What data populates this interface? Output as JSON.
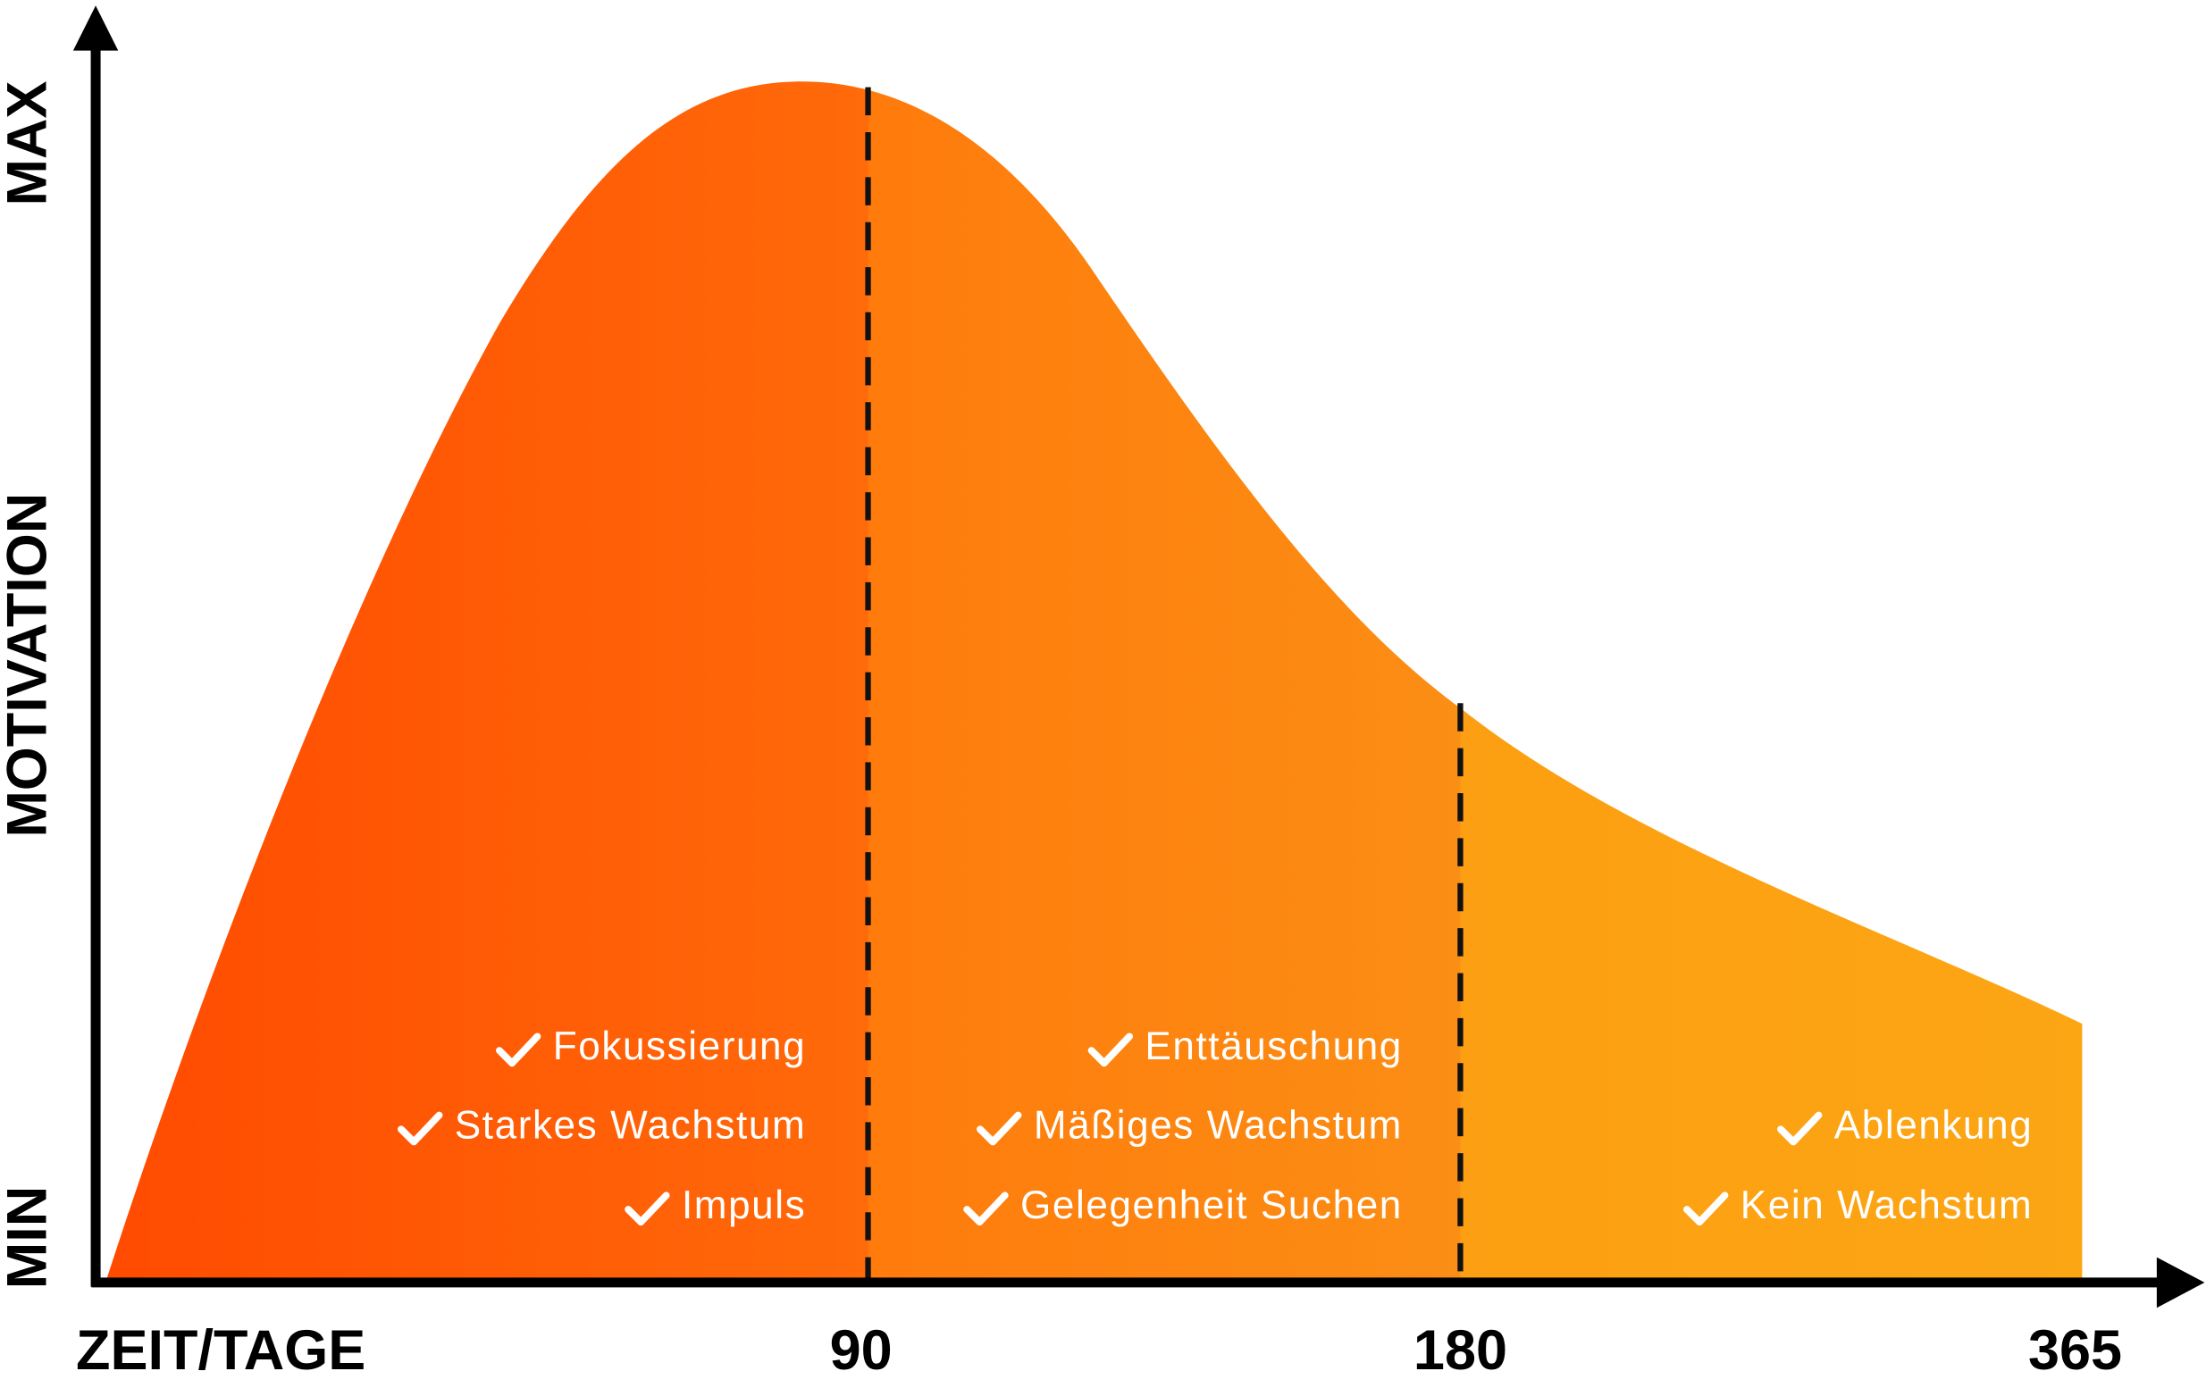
{
  "axes": {
    "y_max": "MAX",
    "y_label": "MOTIVATION",
    "y_min": "MIN",
    "x_label": "ZEIT/TAGE",
    "x_ticks": [
      "90",
      "180",
      "365"
    ]
  },
  "phases": [
    {
      "items": [
        "Fokussierung",
        "Starkes Wachstum",
        "Impuls"
      ]
    },
    {
      "items": [
        "Enttäuschung",
        "Mäßiges Wachstum",
        "Gelegenheit Suchen"
      ]
    },
    {
      "items": [
        "Ablenkung",
        "Kein Wachstum"
      ]
    }
  ]
}
